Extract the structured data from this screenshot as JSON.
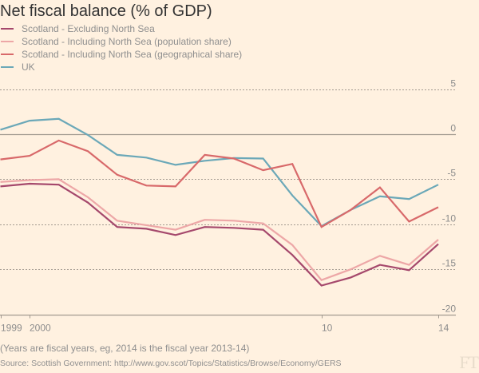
{
  "chart_data": {
    "type": "line",
    "title": "Net fiscal balance (% of GDP)",
    "xlabel": "",
    "ylabel": "",
    "x": [
      1999,
      2000,
      2001,
      2002,
      2003,
      2004,
      2005,
      2006,
      2007,
      2008,
      2009,
      2010,
      2011,
      2012,
      2013,
      2014
    ],
    "x_tick_labels": [
      {
        "x": 1999,
        "label": "1999"
      },
      {
        "x": 2000,
        "label": "2000"
      },
      {
        "x": 2010,
        "label": "10"
      },
      {
        "x": 2014,
        "label": "14"
      }
    ],
    "y_ticks": [
      5,
      0,
      -5,
      -10,
      -15,
      -20
    ],
    "y_tick_labels": [
      "5",
      "0",
      "-5",
      "-10",
      "-15",
      "-20"
    ],
    "ylim": [
      -20,
      5
    ],
    "xlim": [
      1999,
      2014
    ],
    "grid": true,
    "legend_position": "top-left",
    "series": [
      {
        "name": "Scotland - Excluding North Sea",
        "color": "#A5486C",
        "values": [
          -5.8,
          -5.5,
          -5.6,
          -7.6,
          -10.3,
          -10.5,
          -11.2,
          -10.3,
          -10.4,
          -10.6,
          -13.4,
          -16.8,
          -15.9,
          -14.5,
          -15.1,
          -12.2
        ]
      },
      {
        "name": "Scotland - Including North Sea (population share)",
        "color": "#EDA7A7",
        "values": [
          -5.3,
          -5.1,
          -5.0,
          -7.0,
          -9.6,
          -10.1,
          -10.6,
          -9.5,
          -9.6,
          -9.9,
          -12.3,
          -16.2,
          -15.0,
          -13.5,
          -14.5,
          -11.7
        ]
      },
      {
        "name": "Scotland - Including North Sea (geographical share)",
        "color": "#D8696A",
        "values": [
          -2.8,
          -2.4,
          -0.7,
          -1.9,
          -4.5,
          -5.7,
          -5.8,
          -2.3,
          -2.7,
          -4.0,
          -3.3,
          -10.3,
          -8.4,
          -5.9,
          -9.7,
          -8.1
        ]
      },
      {
        "name": "UK",
        "color": "#6BA8B8",
        "values": [
          0.5,
          1.5,
          1.7,
          -0.1,
          -2.3,
          -2.6,
          -3.4,
          -2.95,
          -2.65,
          -2.7,
          -6.8,
          -10.2,
          -8.4,
          -6.9,
          -7.2,
          -5.6
        ]
      }
    ]
  },
  "notes": "(Years are fiscal years, eg, 2014 is the fiscal year 2013-14)",
  "source": "Source: Scottish Government: http://www.gov.scot/Topics/Statistics/Browse/Economy/GERS",
  "logo": "FT"
}
